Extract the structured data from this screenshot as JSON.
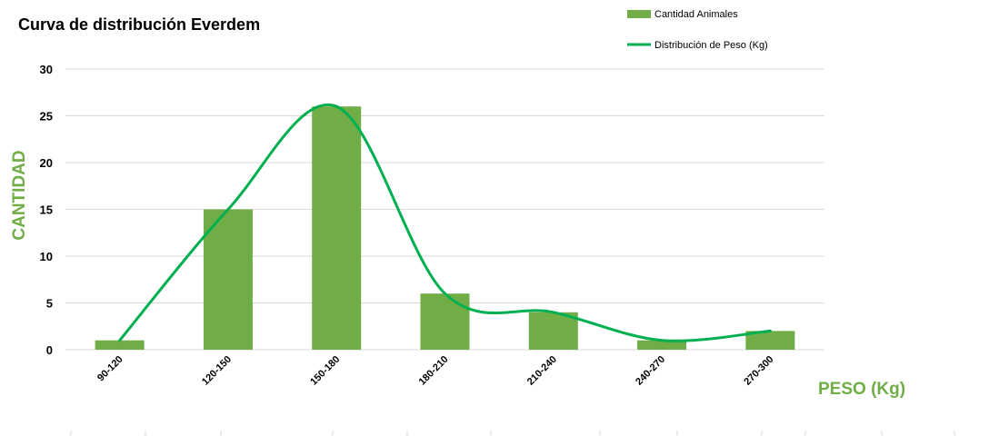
{
  "chart_data": {
    "type": "bar",
    "title": "Curva de distribución Everdem",
    "xlabel": "PESO (Kg)",
    "ylabel": "CANTIDAD",
    "categories": [
      "90-120",
      "120-150",
      "150-180",
      "180-210",
      "210-240",
      "240-270",
      "270-300"
    ],
    "series": [
      {
        "name": "Cantidad Animales",
        "type": "bar",
        "color": "#70AD47",
        "values": [
          1,
          15,
          26,
          6,
          4,
          1,
          2
        ]
      },
      {
        "name": "Distribución de Peso (Kg)",
        "type": "line",
        "smooth": true,
        "color": "#00B050",
        "values": [
          1,
          15,
          26,
          6,
          4,
          1,
          2
        ]
      }
    ],
    "ylim": [
      0,
      30
    ],
    "yticks": [
      0,
      5,
      10,
      15,
      20,
      25,
      30
    ],
    "grid": true,
    "legend": "top-right"
  },
  "colors": {
    "bar": "#70AD47",
    "line": "#00B050",
    "axis_label": "#70AD47",
    "grid": "#D9D9D9"
  }
}
